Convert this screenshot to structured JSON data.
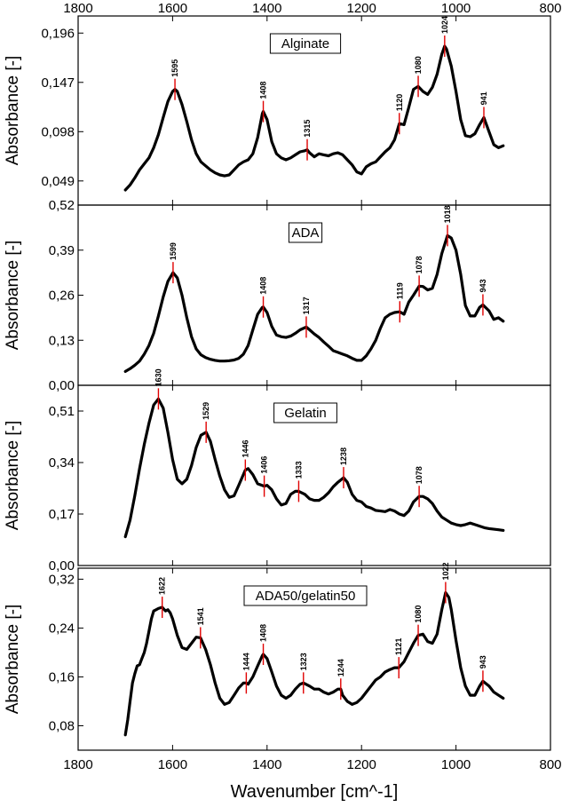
{
  "chart_data": {
    "type": "line",
    "xlabel": "Wavenumber [cm^-1]",
    "xlim": [
      1800,
      800
    ],
    "x_ticks": [
      1800,
      1600,
      1400,
      1200,
      1000,
      800
    ],
    "x_tick_labels": [
      "1800",
      "1600",
      "1400",
      "1200",
      "1000",
      "800"
    ],
    "line_color": "#000000",
    "marker_color": "#e00000",
    "panels": [
      {
        "title": "Alginate",
        "ylabel": "Absorbance [-]",
        "ylim": [
          0.025,
          0.213
        ],
        "y_ticks": [
          0.049,
          0.098,
          0.147,
          0.196
        ],
        "y_tick_labels": [
          "0,049",
          "0,098",
          "0,147",
          "0,196"
        ],
        "x": [
          1700,
          1690,
          1680,
          1670,
          1660,
          1650,
          1640,
          1630,
          1620,
          1610,
          1600,
          1595,
          1590,
          1580,
          1570,
          1560,
          1550,
          1540,
          1530,
          1520,
          1510,
          1500,
          1490,
          1480,
          1470,
          1460,
          1450,
          1440,
          1430,
          1420,
          1410,
          1408,
          1400,
          1390,
          1380,
          1370,
          1360,
          1350,
          1340,
          1330,
          1320,
          1315,
          1310,
          1300,
          1290,
          1280,
          1270,
          1260,
          1250,
          1240,
          1230,
          1220,
          1210,
          1200,
          1190,
          1180,
          1170,
          1160,
          1150,
          1140,
          1130,
          1120,
          1110,
          1100,
          1090,
          1080,
          1070,
          1060,
          1050,
          1040,
          1030,
          1024,
          1020,
          1010,
          1000,
          990,
          980,
          970,
          960,
          950,
          941,
          930,
          920,
          910,
          900
        ],
        "y": [
          0.04,
          0.045,
          0.052,
          0.06,
          0.066,
          0.072,
          0.082,
          0.095,
          0.112,
          0.128,
          0.138,
          0.14,
          0.138,
          0.125,
          0.108,
          0.09,
          0.076,
          0.068,
          0.064,
          0.06,
          0.057,
          0.055,
          0.054,
          0.055,
          0.06,
          0.065,
          0.068,
          0.07,
          0.076,
          0.092,
          0.116,
          0.118,
          0.11,
          0.088,
          0.076,
          0.072,
          0.07,
          0.072,
          0.075,
          0.078,
          0.079,
          0.08,
          0.077,
          0.073,
          0.076,
          0.075,
          0.074,
          0.076,
          0.077,
          0.075,
          0.07,
          0.065,
          0.058,
          0.056,
          0.063,
          0.066,
          0.068,
          0.073,
          0.078,
          0.082,
          0.09,
          0.106,
          0.105,
          0.122,
          0.14,
          0.143,
          0.138,
          0.135,
          0.142,
          0.155,
          0.175,
          0.183,
          0.18,
          0.163,
          0.138,
          0.11,
          0.094,
          0.093,
          0.096,
          0.105,
          0.112,
          0.098,
          0.085,
          0.082,
          0.084
        ],
        "peaks": [
          {
            "x": 1595,
            "y": 0.14,
            "label": "1595"
          },
          {
            "x": 1408,
            "y": 0.118,
            "label": "1408"
          },
          {
            "x": 1315,
            "y": 0.08,
            "label": "1315"
          },
          {
            "x": 1120,
            "y": 0.106,
            "label": "1120"
          },
          {
            "x": 1080,
            "y": 0.143,
            "label": "1080"
          },
          {
            "x": 1024,
            "y": 0.183,
            "label": "1024"
          },
          {
            "x": 941,
            "y": 0.112,
            "label": "941"
          }
        ]
      },
      {
        "title": "ADA",
        "ylabel": "Absorbance [-]",
        "ylim": [
          0.0,
          0.52
        ],
        "y_ticks": [
          0.0,
          0.13,
          0.26,
          0.39,
          0.52
        ],
        "y_tick_labels": [
          "0,00",
          "0,13",
          "0,26",
          "0,39",
          "0,52"
        ],
        "x": [
          1700,
          1690,
          1680,
          1670,
          1660,
          1650,
          1640,
          1630,
          1620,
          1610,
          1599,
          1590,
          1580,
          1570,
          1560,
          1550,
          1540,
          1530,
          1520,
          1510,
          1500,
          1490,
          1480,
          1470,
          1460,
          1450,
          1440,
          1430,
          1420,
          1410,
          1408,
          1400,
          1390,
          1380,
          1370,
          1360,
          1350,
          1340,
          1330,
          1317,
          1310,
          1300,
          1290,
          1280,
          1270,
          1260,
          1250,
          1240,
          1230,
          1220,
          1210,
          1200,
          1190,
          1180,
          1170,
          1160,
          1150,
          1140,
          1130,
          1119,
          1110,
          1100,
          1090,
          1078,
          1070,
          1060,
          1050,
          1040,
          1030,
          1018,
          1010,
          1000,
          990,
          980,
          970,
          960,
          950,
          943,
          930,
          920,
          910,
          900
        ],
        "y": [
          0.04,
          0.048,
          0.058,
          0.07,
          0.09,
          0.115,
          0.15,
          0.2,
          0.255,
          0.3,
          0.325,
          0.31,
          0.26,
          0.195,
          0.14,
          0.105,
          0.088,
          0.08,
          0.075,
          0.072,
          0.07,
          0.07,
          0.071,
          0.073,
          0.078,
          0.09,
          0.115,
          0.16,
          0.205,
          0.225,
          0.226,
          0.21,
          0.17,
          0.145,
          0.14,
          0.138,
          0.142,
          0.15,
          0.16,
          0.168,
          0.16,
          0.148,
          0.138,
          0.125,
          0.113,
          0.1,
          0.095,
          0.09,
          0.085,
          0.078,
          0.072,
          0.072,
          0.085,
          0.105,
          0.13,
          0.165,
          0.195,
          0.205,
          0.21,
          0.212,
          0.205,
          0.24,
          0.26,
          0.286,
          0.285,
          0.275,
          0.28,
          0.32,
          0.38,
          0.432,
          0.425,
          0.39,
          0.32,
          0.23,
          0.2,
          0.2,
          0.225,
          0.232,
          0.215,
          0.19,
          0.195,
          0.185
        ],
        "peaks": [
          {
            "x": 1599,
            "y": 0.325,
            "label": "1599"
          },
          {
            "x": 1408,
            "y": 0.226,
            "label": "1408"
          },
          {
            "x": 1317,
            "y": 0.168,
            "label": "1317"
          },
          {
            "x": 1119,
            "y": 0.212,
            "label": "1119"
          },
          {
            "x": 1078,
            "y": 0.286,
            "label": "1078"
          },
          {
            "x": 1018,
            "y": 0.432,
            "label": "1018"
          },
          {
            "x": 943,
            "y": 0.232,
            "label": "943"
          }
        ]
      },
      {
        "title": "Gelatin",
        "ylabel": "Absorbance [-]",
        "ylim": [
          0.0,
          0.595
        ],
        "y_ticks": [
          0.0,
          0.17,
          0.34,
          0.51
        ],
        "y_tick_labels": [
          "0,00",
          "0,17",
          "0,34",
          "0,51"
        ],
        "x": [
          1700,
          1690,
          1680,
          1670,
          1660,
          1650,
          1640,
          1630,
          1620,
          1610,
          1600,
          1590,
          1580,
          1570,
          1560,
          1550,
          1540,
          1529,
          1520,
          1510,
          1500,
          1490,
          1480,
          1470,
          1460,
          1446,
          1440,
          1430,
          1420,
          1406,
          1400,
          1390,
          1380,
          1370,
          1360,
          1350,
          1340,
          1333,
          1320,
          1310,
          1300,
          1290,
          1280,
          1270,
          1260,
          1250,
          1238,
          1230,
          1220,
          1210,
          1200,
          1190,
          1180,
          1170,
          1160,
          1150,
          1140,
          1130,
          1120,
          1110,
          1100,
          1090,
          1078,
          1070,
          1060,
          1050,
          1040,
          1030,
          1020,
          1010,
          1000,
          990,
          980,
          970,
          960,
          950,
          940,
          930,
          920,
          910,
          900
        ],
        "y": [
          0.095,
          0.15,
          0.23,
          0.32,
          0.4,
          0.47,
          0.53,
          0.55,
          0.52,
          0.44,
          0.35,
          0.285,
          0.27,
          0.285,
          0.33,
          0.39,
          0.43,
          0.44,
          0.41,
          0.35,
          0.295,
          0.25,
          0.225,
          0.23,
          0.265,
          0.315,
          0.32,
          0.3,
          0.27,
          0.262,
          0.265,
          0.25,
          0.22,
          0.2,
          0.205,
          0.235,
          0.245,
          0.245,
          0.235,
          0.22,
          0.215,
          0.215,
          0.225,
          0.24,
          0.26,
          0.275,
          0.29,
          0.275,
          0.235,
          0.215,
          0.21,
          0.195,
          0.19,
          0.182,
          0.18,
          0.178,
          0.185,
          0.18,
          0.17,
          0.165,
          0.18,
          0.21,
          0.228,
          0.228,
          0.22,
          0.205,
          0.18,
          0.16,
          0.15,
          0.14,
          0.135,
          0.132,
          0.135,
          0.14,
          0.135,
          0.13,
          0.125,
          0.122,
          0.12,
          0.118,
          0.116
        ],
        "peaks": [
          {
            "x": 1630,
            "y": 0.55,
            "label": "1630"
          },
          {
            "x": 1529,
            "y": 0.44,
            "label": "1529"
          },
          {
            "x": 1446,
            "y": 0.315,
            "label": "1446"
          },
          {
            "x": 1406,
            "y": 0.262,
            "label": "1406"
          },
          {
            "x": 1333,
            "y": 0.245,
            "label": "1333"
          },
          {
            "x": 1238,
            "y": 0.29,
            "label": "1238"
          },
          {
            "x": 1078,
            "y": 0.228,
            "label": "1078"
          }
        ]
      },
      {
        "title": "ADA50/gelatin50",
        "ylabel": "Absorbance [-]",
        "ylim": [
          0.04,
          0.338
        ],
        "y_ticks": [
          0.08,
          0.16,
          0.24,
          0.32
        ],
        "y_tick_labels": [
          "0,08",
          "0,16",
          "0,24",
          "0,32"
        ],
        "x": [
          1700,
          1695,
          1690,
          1685,
          1680,
          1675,
          1670,
          1665,
          1660,
          1655,
          1650,
          1645,
          1640,
          1635,
          1630,
          1622,
          1615,
          1610,
          1605,
          1600,
          1590,
          1580,
          1570,
          1560,
          1550,
          1541,
          1530,
          1520,
          1510,
          1500,
          1490,
          1480,
          1470,
          1460,
          1450,
          1444,
          1440,
          1430,
          1420,
          1410,
          1408,
          1400,
          1390,
          1380,
          1370,
          1360,
          1350,
          1340,
          1330,
          1323,
          1310,
          1300,
          1290,
          1280,
          1270,
          1260,
          1250,
          1244,
          1240,
          1230,
          1220,
          1210,
          1200,
          1190,
          1180,
          1170,
          1160,
          1150,
          1140,
          1130,
          1121,
          1110,
          1100,
          1090,
          1080,
          1070,
          1060,
          1050,
          1040,
          1030,
          1022,
          1015,
          1010,
          1000,
          990,
          980,
          970,
          960,
          950,
          943,
          930,
          920,
          910,
          900
        ],
        "y": [
          0.065,
          0.09,
          0.12,
          0.15,
          0.165,
          0.178,
          0.18,
          0.19,
          0.2,
          0.215,
          0.235,
          0.255,
          0.268,
          0.27,
          0.272,
          0.274,
          0.268,
          0.27,
          0.265,
          0.255,
          0.228,
          0.208,
          0.205,
          0.215,
          0.225,
          0.224,
          0.205,
          0.18,
          0.15,
          0.125,
          0.115,
          0.118,
          0.13,
          0.142,
          0.15,
          0.15,
          0.148,
          0.16,
          0.178,
          0.195,
          0.197,
          0.19,
          0.168,
          0.145,
          0.13,
          0.125,
          0.13,
          0.14,
          0.148,
          0.15,
          0.145,
          0.14,
          0.14,
          0.135,
          0.132,
          0.135,
          0.14,
          0.14,
          0.13,
          0.12,
          0.115,
          0.118,
          0.125,
          0.135,
          0.145,
          0.155,
          0.16,
          0.168,
          0.172,
          0.175,
          0.175,
          0.185,
          0.2,
          0.215,
          0.228,
          0.23,
          0.218,
          0.215,
          0.23,
          0.27,
          0.298,
          0.29,
          0.27,
          0.22,
          0.175,
          0.145,
          0.13,
          0.13,
          0.145,
          0.153,
          0.145,
          0.135,
          0.13,
          0.125
        ],
        "peaks": [
          {
            "x": 1622,
            "y": 0.274,
            "label": "1622"
          },
          {
            "x": 1541,
            "y": 0.224,
            "label": "1541"
          },
          {
            "x": 1444,
            "y": 0.15,
            "label": "1444"
          },
          {
            "x": 1408,
            "y": 0.197,
            "label": "1408"
          },
          {
            "x": 1323,
            "y": 0.15,
            "label": "1323"
          },
          {
            "x": 1244,
            "y": 0.14,
            "label": "1244"
          },
          {
            "x": 1121,
            "y": 0.175,
            "label": "1121"
          },
          {
            "x": 1080,
            "y": 0.228,
            "label": "1080"
          },
          {
            "x": 1022,
            "y": 0.298,
            "label": "1022"
          },
          {
            "x": 943,
            "y": 0.153,
            "label": "943"
          }
        ]
      }
    ]
  }
}
